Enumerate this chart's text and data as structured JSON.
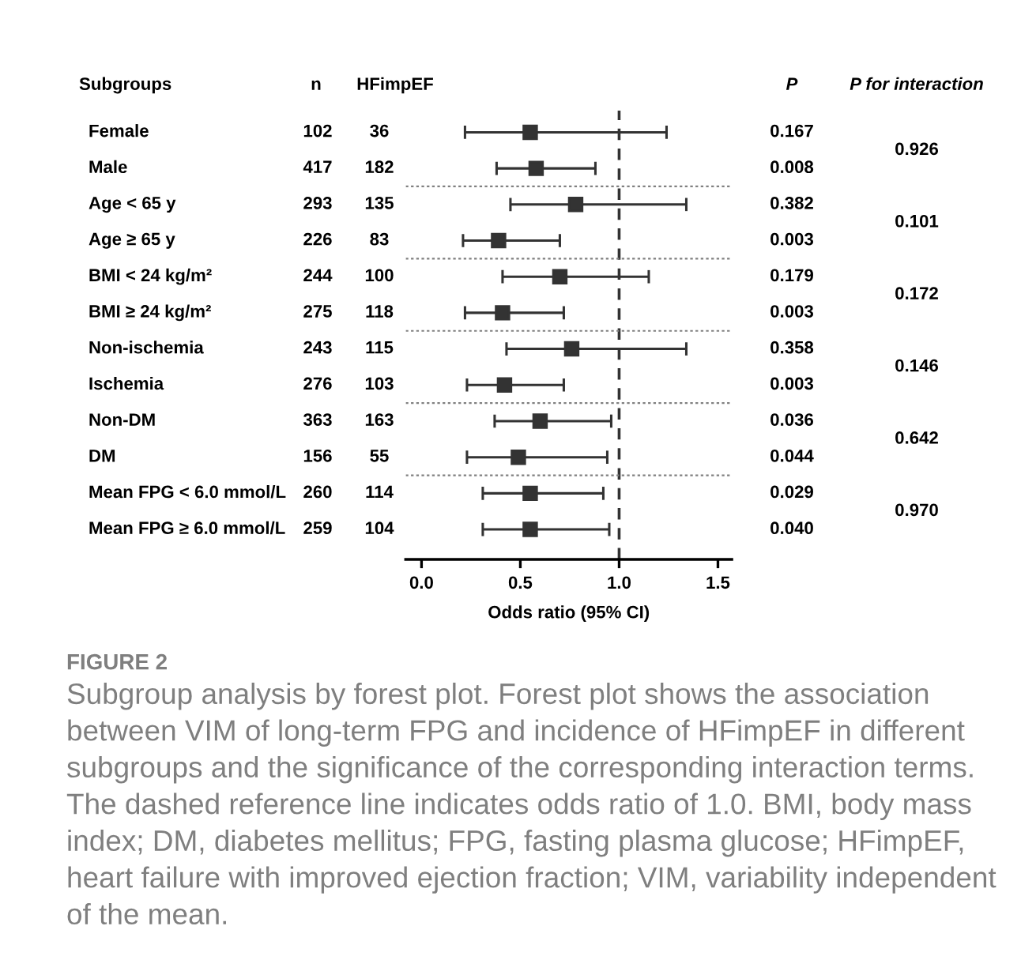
{
  "chart_data": {
    "type": "scatter",
    "orientation": "horizontal",
    "ylabel": "Subgroups",
    "xlabel": "Odds ratio (95% CI)",
    "categories": [
      "Female",
      "Male",
      "Age < 65 y",
      "Age ≥ 65 y",
      "BMI < 24 kg/m²",
      "BMI ≥ 24 kg/m²",
      "Non-ischemia",
      "Ischemia",
      "Non-DM",
      "DM",
      "Mean FPG < 6.0 mmol/L",
      "Mean FPG ≥ 6.0 mmol/L"
    ],
    "series": [
      {
        "color": "#333333",
        "values": [
          0.55,
          0.58,
          0.78,
          0.39,
          0.7,
          0.41,
          0.76,
          0.42,
          0.6,
          0.49,
          0.55,
          0.55
        ],
        "errors": [
          [
            0.22,
            1.24
          ],
          [
            0.38,
            0.88
          ],
          [
            0.45,
            1.34
          ],
          [
            0.21,
            0.7
          ],
          [
            0.41,
            1.15
          ],
          [
            0.22,
            0.72
          ],
          [
            0.43,
            1.34
          ],
          [
            0.23,
            0.72
          ],
          [
            0.37,
            0.96
          ],
          [
            0.23,
            0.94
          ],
          [
            0.31,
            0.92
          ],
          [
            0.31,
            0.95
          ]
        ]
      }
    ],
    "marker": "square",
    "xlim": [
      -0.08,
      1.57
    ],
    "xticks": [
      {
        "value": 0,
        "label": "0.0"
      },
      {
        "value": 0.5,
        "label": "0.5"
      },
      {
        "value": 1,
        "label": "1.0"
      },
      {
        "value": 1.5,
        "label": "1.5"
      }
    ],
    "tick_labels": "x",
    "grid": false,
    "ref_lines": [
      {
        "axis": "x",
        "value": 1.0,
        "line_style": "dashed",
        "color": "#333333"
      }
    ],
    "annotations": [
      "n",
      "HFimpEF",
      "P",
      "P for interaction",
      "102",
      "36",
      "0.167",
      "417",
      "182",
      "0.008",
      "293",
      "135",
      "0.382",
      "226",
      "83",
      "0.003",
      "244",
      "100",
      "0.179",
      "275",
      "118",
      "0.003",
      "243",
      "115",
      "0.358",
      "276",
      "103",
      "0.003",
      "363",
      "163",
      "0.036",
      "156",
      "55",
      "0.044",
      "260",
      "114",
      "0.029",
      "259",
      "104",
      "0.040",
      "0.926",
      "0.101",
      "0.172",
      "0.146",
      "0.642",
      "0.970",
      "FIGURE 2",
      "Subgroup analysis by forest plot. Forest plot shows the association between VIM of long-term FPG and incidence of HFimpEF in different subgroups and the significance of the corresponding interaction terms. The dashed reference line indicates odds ratio of 1.0. BMI, body mass index; DM, diabetes mellitus; FPG, fasting plasma glucose; HFimpEF, heart failure with improved ejection fraction; VIM, variability independent of the mean."
    ]
  }
}
